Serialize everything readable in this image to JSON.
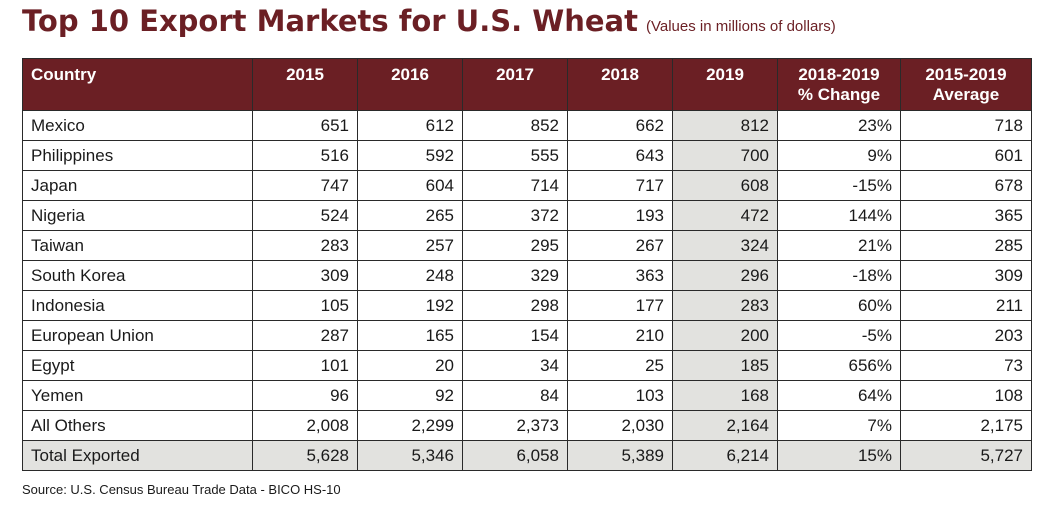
{
  "title": "Top 10 Export Markets for U.S. Wheat",
  "subtitle": "(Values in millions of dollars)",
  "headers": [
    "Country",
    "2015",
    "2016",
    "2017",
    "2018",
    "2019",
    [
      "2018-2019",
      "% Change"
    ],
    [
      "2015-2019",
      "Average"
    ]
  ],
  "rows": [
    [
      "Mexico",
      "651",
      "612",
      "852",
      "662",
      "812",
      "23%",
      "718"
    ],
    [
      "Philippines",
      "516",
      "592",
      "555",
      "643",
      "700",
      "9%",
      "601"
    ],
    [
      "Japan",
      "747",
      "604",
      "714",
      "717",
      "608",
      "-15%",
      "678"
    ],
    [
      "Nigeria",
      "524",
      "265",
      "372",
      "193",
      "472",
      "144%",
      "365"
    ],
    [
      "Taiwan",
      "283",
      "257",
      "295",
      "267",
      "324",
      "21%",
      "285"
    ],
    [
      "South Korea",
      "309",
      "248",
      "329",
      "363",
      "296",
      "-18%",
      "309"
    ],
    [
      "Indonesia",
      "105",
      "192",
      "298",
      "177",
      "283",
      "60%",
      "211"
    ],
    [
      "European Union",
      "287",
      "165",
      "154",
      "210",
      "200",
      "-5%",
      "203"
    ],
    [
      "Egypt",
      "101",
      "20",
      "34",
      "25",
      "185",
      "656%",
      "73"
    ],
    [
      "Yemen",
      "96",
      "92",
      "84",
      "103",
      "168",
      "64%",
      "108"
    ],
    [
      "All Others",
      "2,008",
      "2,299",
      "2,373",
      "2,030",
      "2,164",
      "7%",
      "2,175"
    ]
  ],
  "total": [
    "Total Exported",
    "5,628",
    "5,346",
    "6,058",
    "5,389",
    "6,214",
    "15%",
    "5,727"
  ],
  "source": "Source: U.S. Census Bureau Trade Data - BICO HS-10",
  "colors": {
    "header_bg": "#6b1f24",
    "title": "#6b1f24",
    "highlight": "#e2e2df"
  }
}
